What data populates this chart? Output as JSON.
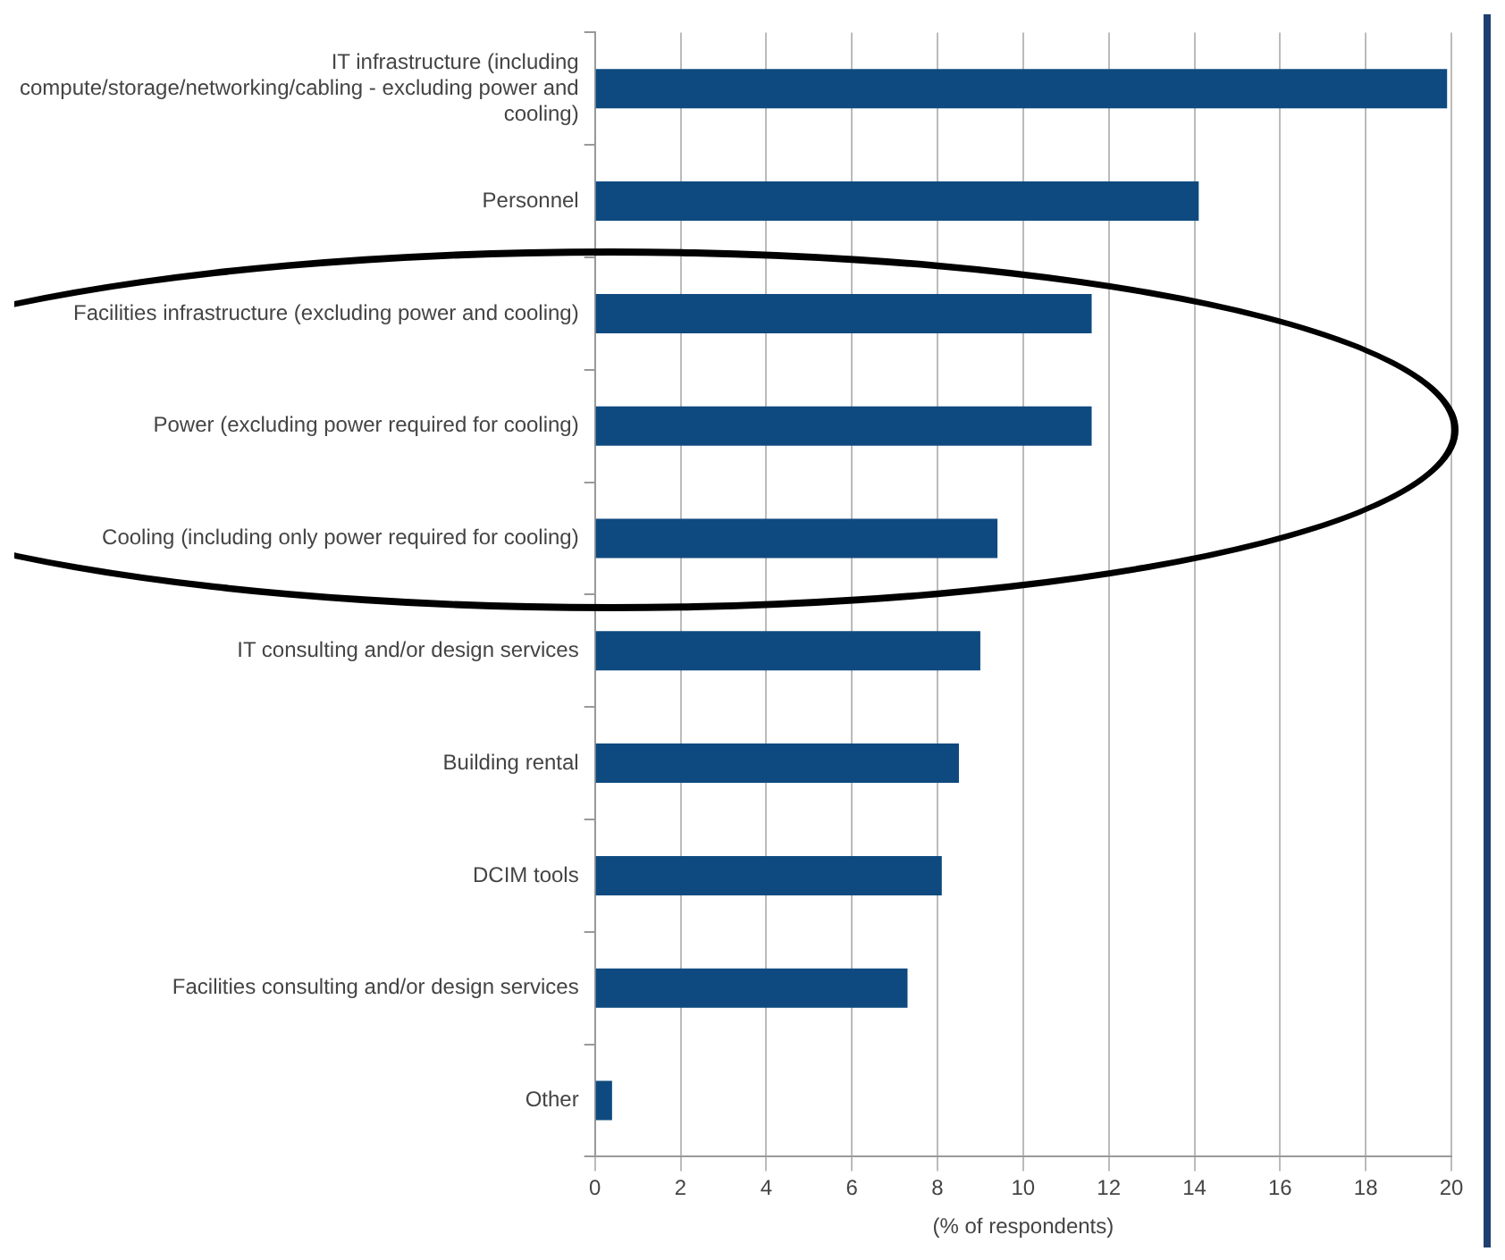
{
  "chart_data": {
    "type": "bar",
    "orientation": "horizontal",
    "xlabel": "(% of respondents)",
    "categories": [
      "IT infrastructure (including compute/storage/networking/cabling - excluding power and cooling)",
      "Personnel",
      "Facilities infrastructure (excluding power and cooling)",
      "Power (excluding power required for cooling)",
      "Cooling (including only power required for cooling)",
      "IT consulting and/or design services",
      "Building rental",
      "DCIM tools",
      "Facilities consulting and/or design services",
      "Other"
    ],
    "values": [
      19.9,
      14.1,
      11.6,
      11.6,
      9.4,
      9.0,
      8.5,
      8.1,
      7.3,
      0.4
    ],
    "color": "#0e4a7f",
    "xlim": [
      0,
      20
    ],
    "xticks": [
      0,
      2,
      4,
      6,
      8,
      10,
      12,
      14,
      16,
      18,
      20
    ],
    "grid": "x",
    "legend": false
  }
}
